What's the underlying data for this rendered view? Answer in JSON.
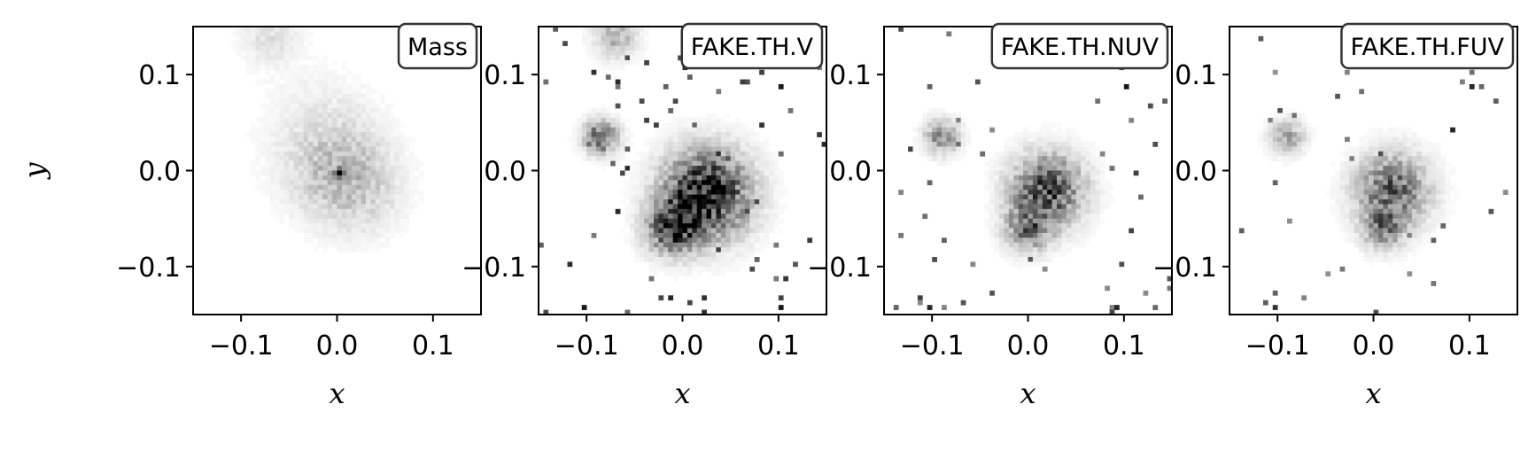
{
  "chart_data": [
    {
      "type": "heatmap",
      "title": "Mass",
      "xlabel": "x",
      "ylabel": "y",
      "xlim": [
        -0.15,
        0.15
      ],
      "ylim": [
        -0.15,
        0.15
      ],
      "xticks": [
        -0.1,
        0.0,
        0.1
      ],
      "yticks": [
        -0.1,
        0.0,
        0.1
      ],
      "xtick_labels": [
        "−0.1",
        "0.0",
        "0.1"
      ],
      "ytick_labels": [
        "−0.1",
        "0.0",
        "0.1"
      ],
      "colormap": "Greys",
      "blobs": [
        {
          "x": 0.0,
          "y": 0.0,
          "sigma": 0.035,
          "amp": 0.22
        },
        {
          "x": 0.025,
          "y": -0.025,
          "sigma": 0.03,
          "amp": 0.1
        },
        {
          "x": -0.07,
          "y": 0.14,
          "sigma": 0.02,
          "amp": 0.12
        },
        {
          "x": -0.02,
          "y": 0.05,
          "sigma": 0.04,
          "amp": 0.06
        }
      ],
      "peaks": [
        {
          "x": 0.0,
          "y": 0.0,
          "value": 1.0
        }
      ],
      "noise": {
        "count": 0,
        "amp": 0
      }
    },
    {
      "type": "heatmap",
      "title": "FAKE.TH.V",
      "xlabel": "x",
      "ylabel": "",
      "xlim": [
        -0.15,
        0.15
      ],
      "ylim": [
        -0.15,
        0.15
      ],
      "xticks": [
        -0.1,
        0.0,
        0.1
      ],
      "yticks": [
        -0.1,
        0.0,
        0.1
      ],
      "xtick_labels": [
        "−0.1",
        "0.0",
        "0.1"
      ],
      "ytick_labels": [
        "−0.1",
        "0.0",
        "0.1"
      ],
      "colormap": "Greys",
      "blobs": [
        {
          "x": 0.025,
          "y": -0.025,
          "sigma": 0.03,
          "amp": 0.95
        },
        {
          "x": -0.01,
          "y": -0.06,
          "sigma": 0.018,
          "amp": 0.7
        },
        {
          "x": -0.085,
          "y": 0.035,
          "sigma": 0.012,
          "amp": 0.6
        },
        {
          "x": -0.07,
          "y": 0.14,
          "sigma": 0.015,
          "amp": 0.3
        }
      ],
      "peaks": [
        {
          "x": -0.1,
          "y": -0.14,
          "value": 0.9
        },
        {
          "x": -0.015,
          "y": -0.13,
          "value": 0.85
        },
        {
          "x": 0.1,
          "y": 0.085,
          "value": 0.9
        },
        {
          "x": 0.08,
          "y": 0.05,
          "value": 0.8
        },
        {
          "x": 0.0,
          "y": 0.12,
          "value": 0.85
        },
        {
          "x": 0.1,
          "y": -0.14,
          "value": 0.9
        }
      ],
      "noise": {
        "count": 70,
        "amp": 0.85
      }
    },
    {
      "type": "heatmap",
      "title": "FAKE.TH.NUV",
      "xlabel": "x",
      "ylabel": "",
      "xlim": [
        -0.15,
        0.15
      ],
      "ylim": [
        -0.15,
        0.15
      ],
      "xticks": [
        -0.1,
        0.0,
        0.1
      ],
      "yticks": [
        -0.1,
        0.0,
        0.1
      ],
      "xtick_labels": [
        "−0.1",
        "0.0",
        "0.1"
      ],
      "ytick_labels": [
        "−0.1",
        "0.0",
        "0.1"
      ],
      "colormap": "Greys",
      "blobs": [
        {
          "x": 0.02,
          "y": -0.02,
          "sigma": 0.025,
          "amp": 0.7
        },
        {
          "x": 0.0,
          "y": -0.06,
          "sigma": 0.016,
          "amp": 0.5
        },
        {
          "x": -0.09,
          "y": 0.035,
          "sigma": 0.012,
          "amp": 0.45
        }
      ],
      "peaks": [
        {
          "x": 0.1,
          "y": 0.085,
          "value": 0.9
        },
        {
          "x": -0.1,
          "y": -0.14,
          "value": 0.85
        },
        {
          "x": 0.09,
          "y": -0.14,
          "value": 0.85
        }
      ],
      "noise": {
        "count": 45,
        "amp": 0.75
      }
    },
    {
      "type": "heatmap",
      "title": "FAKE.TH.FUV",
      "xlabel": "x",
      "ylabel": "",
      "xlim": [
        -0.15,
        0.15
      ],
      "ylim": [
        -0.15,
        0.15
      ],
      "xticks": [
        -0.1,
        0.0,
        0.1
      ],
      "yticks": [
        -0.1,
        0.0,
        0.1
      ],
      "xtick_labels": [
        "−0.1",
        "0.0",
        "0.1"
      ],
      "ytick_labels": [
        "−0.1",
        "0.0",
        "0.1"
      ],
      "colormap": "Greys",
      "blobs": [
        {
          "x": 0.02,
          "y": -0.02,
          "sigma": 0.025,
          "amp": 0.6
        },
        {
          "x": 0.01,
          "y": -0.06,
          "sigma": 0.015,
          "amp": 0.4
        },
        {
          "x": -0.09,
          "y": 0.035,
          "sigma": 0.012,
          "amp": 0.35
        }
      ],
      "peaks": [
        {
          "x": 0.1,
          "y": 0.085,
          "value": 0.85
        },
        {
          "x": 0.08,
          "y": 0.045,
          "value": 0.85
        },
        {
          "x": -0.1,
          "y": -0.14,
          "value": 0.8
        }
      ],
      "noise": {
        "count": 40,
        "amp": 0.7
      }
    }
  ]
}
